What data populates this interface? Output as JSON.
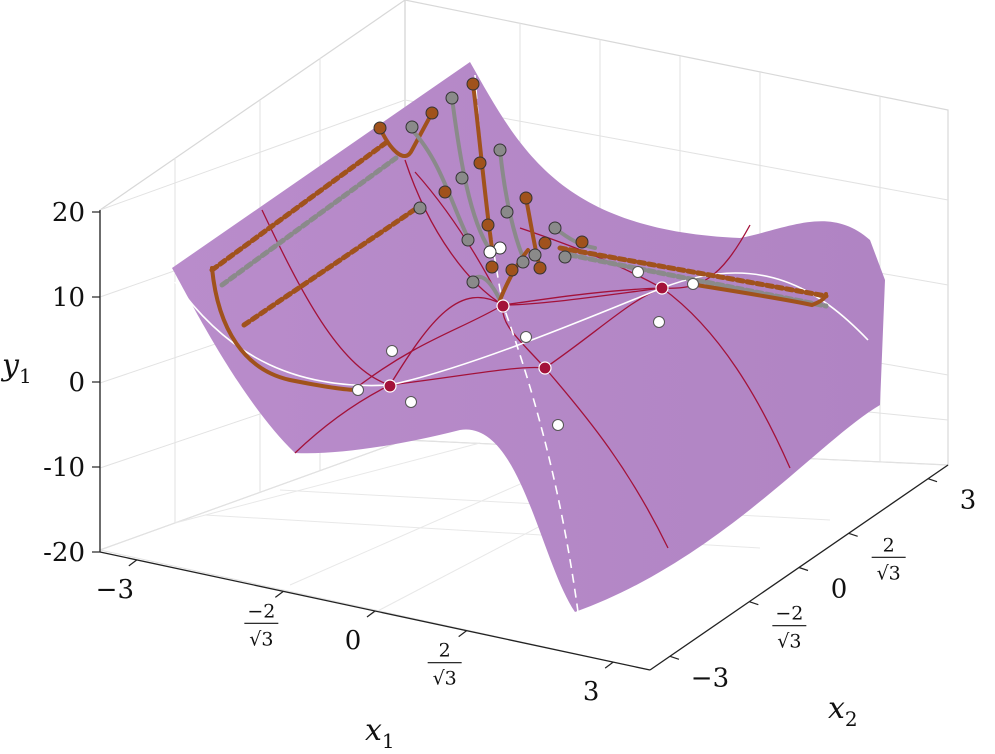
{
  "chart_data": {
    "type": "surface3d",
    "title": "",
    "surface_color": "#b489c6",
    "line_color": "#a3123a",
    "axes": {
      "x1": {
        "label": "x",
        "label_sub": "1",
        "range": [
          -3.4641,
          3.4641
        ],
        "ticks": [
          {
            "value": -3,
            "label": "−3"
          },
          {
            "value": -1.1547,
            "num": "−2",
            "den": "√3"
          },
          {
            "value": 0,
            "label": "0"
          },
          {
            "value": 1.1547,
            "num": "2",
            "den": "√3"
          },
          {
            "value": 3,
            "label": "3"
          }
        ]
      },
      "x2": {
        "label": "x",
        "label_sub": "2",
        "range": [
          -3.4641,
          3.4641
        ],
        "ticks": [
          {
            "value": -3,
            "label": "−3"
          },
          {
            "value": -1.1547,
            "num": "−2",
            "den": "√3"
          },
          {
            "value": 0,
            "label": "0"
          },
          {
            "value": 1.1547,
            "num": "2",
            "den": "√3"
          },
          {
            "value": 3,
            "label": "3"
          }
        ]
      },
      "y1": {
        "label": "y",
        "label_sub": "1",
        "range": [
          -20,
          20
        ],
        "ticks": [
          {
            "value": 20,
            "label": "20"
          },
          {
            "value": 10,
            "label": "10"
          },
          {
            "value": 0,
            "label": "0"
          },
          {
            "value": -10,
            "label": "-10"
          },
          {
            "value": -20,
            "label": "-20"
          }
        ]
      }
    },
    "critical_points": [
      {
        "x1": -1.1547,
        "x2": -1.1547,
        "y": 0
      },
      {
        "x1": -1.1547,
        "x2": 1.1547,
        "y": 6.16
      },
      {
        "x1": 1.1547,
        "x2": -1.1547,
        "y": 0
      },
      {
        "x1": 1.1547,
        "x2": 1.1547,
        "y": 6.16
      }
    ],
    "trajectories": [
      {
        "color": "#a0521c",
        "x1": [
          -1.5,
          -0.8,
          -0.3,
          0.0
        ],
        "x2": [
          2.5,
          2.0,
          1.5,
          1.2
        ]
      },
      {
        "color": "#8a8a8a",
        "x1": [
          -1.2,
          -0.6,
          -0.2,
          0.1
        ],
        "x2": [
          2.6,
          2.1,
          1.6,
          1.25
        ]
      },
      {
        "color": "#a0521c",
        "x1": [
          -0.9,
          -0.4,
          0.0,
          0.2
        ],
        "x2": [
          2.7,
          2.2,
          1.7,
          1.3
        ]
      }
    ],
    "grid": true
  }
}
